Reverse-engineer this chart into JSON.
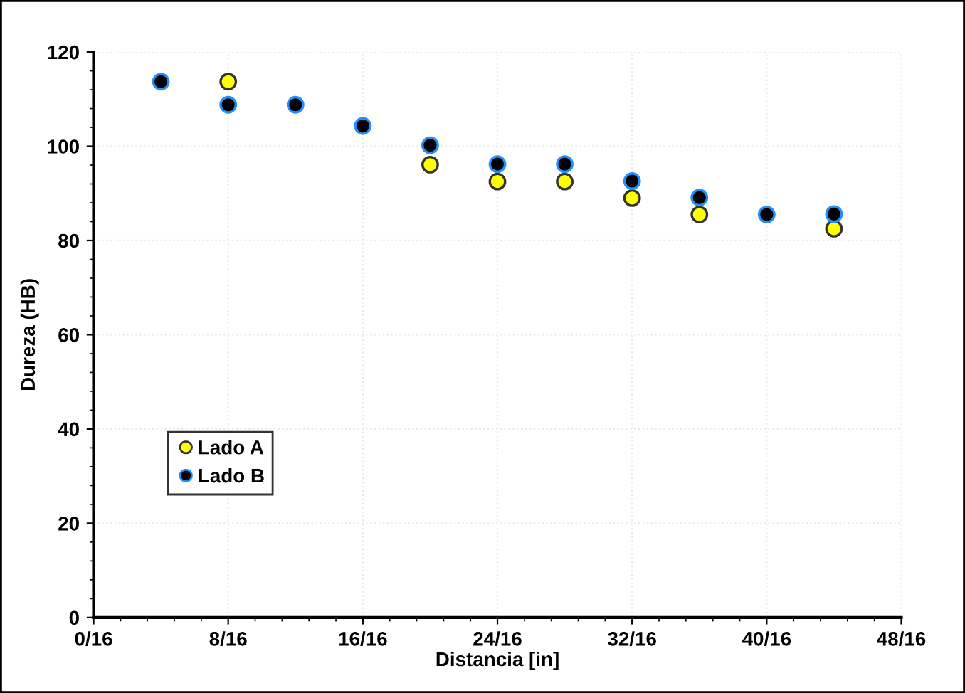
{
  "chart_data": {
    "type": "scatter",
    "xlabel": "Distancia [in]",
    "ylabel": "Dureza (HB)",
    "x": [
      0.25,
      0.5,
      0.75,
      1.0,
      1.25,
      1.5,
      1.75,
      2.0,
      2.25,
      2.5,
      2.75
    ],
    "series": [
      {
        "name": "Lado A",
        "color": "#ffff00",
        "values": [
          null,
          113.7,
          null,
          null,
          96.1,
          92.5,
          92.5,
          89.0,
          85.5,
          null,
          82.5
        ]
      },
      {
        "name": "Lado B",
        "color": "#000000",
        "values": [
          113.7,
          108.8,
          108.8,
          104.3,
          100.2,
          96.2,
          96.2,
          92.6,
          89.1,
          85.5,
          85.6
        ]
      }
    ],
    "xlim": [
      0,
      3
    ],
    "ylim": [
      0,
      120
    ],
    "xticks": [
      {
        "value": 0,
        "label": "0/16"
      },
      {
        "value": 0.5,
        "label": "8/16"
      },
      {
        "value": 1.0,
        "label": "16/16"
      },
      {
        "value": 1.5,
        "label": "24/16"
      },
      {
        "value": 2.0,
        "label": "32/16"
      },
      {
        "value": 2.5,
        "label": "40/16"
      },
      {
        "value": 3.0,
        "label": "48/16"
      }
    ],
    "yticks": [
      0,
      20,
      40,
      60,
      80,
      100,
      120
    ],
    "grid": true,
    "legend": "bottom left",
    "marker": "circle"
  }
}
